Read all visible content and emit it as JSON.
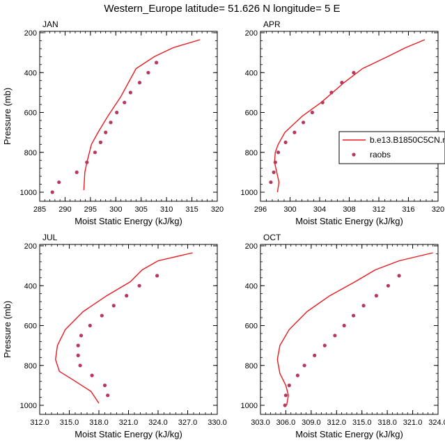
{
  "figure": {
    "title": "Western_Europe  latitude= 51.626 N longitude= 5 E"
  },
  "colors": {
    "model_line": "#e8191f",
    "raobs_marker": "#b5385d"
  },
  "legend": {
    "placement": "right-of-APR-panel",
    "model_label": "b.e13.B1850C5CN.n",
    "obs_label": "raobs"
  },
  "chart_data": [
    {
      "type": "line",
      "panel": "JAN",
      "title": "JAN",
      "xlabel": "Moist Static Energy (kJ/kg)",
      "ylabel": "Pressure (mb)",
      "xlim": [
        285,
        320
      ],
      "ylim": [
        1000,
        200
      ],
      "y_scale": "linear-reversed",
      "xticks": [
        285,
        290,
        295,
        300,
        305,
        310,
        315,
        320
      ],
      "xtick_labels": [
        "285",
        "290",
        "295",
        "300",
        "305",
        "310",
        "315",
        "320"
      ],
      "yticks": [
        200,
        400,
        600,
        800,
        1000
      ],
      "ytick_labels": [
        "200",
        "400",
        "600",
        "800",
        "1000"
      ],
      "grid": false,
      "series": [
        {
          "name": "b.e13.B1850C5CN.n",
          "style": "line",
          "x": [
            293.7,
            293.9,
            294.3,
            295.2,
            296.5,
            298.4,
            301.0,
            304.0,
            307.6,
            311.3,
            316.6
          ],
          "y": [
            990,
            900,
            850,
            760,
            700,
            620,
            520,
            380,
            320,
            275,
            235
          ]
        },
        {
          "name": "raobs",
          "style": "marker",
          "x": [
            287.5,
            288.8,
            292.3,
            294.3,
            295.9,
            297.0,
            298.0,
            299.0,
            300.2,
            301.7,
            302.9,
            304.7,
            306.4,
            308.0
          ],
          "y": [
            1000,
            950,
            900,
            850,
            800,
            750,
            700,
            650,
            600,
            550,
            500,
            450,
            400,
            350
          ]
        }
      ]
    },
    {
      "type": "line",
      "panel": "APR",
      "title": "APR",
      "xlabel": "Moist Static Energy (kJ/kg)",
      "ylabel": "",
      "xlim": [
        296,
        320
      ],
      "ylim": [
        1000,
        200
      ],
      "y_scale": "linear-reversed",
      "xticks": [
        296,
        300,
        304,
        308,
        312,
        316,
        320
      ],
      "xtick_labels": [
        "296",
        "300",
        "304",
        "308",
        "312",
        "316",
        "320"
      ],
      "yticks": [
        200,
        400,
        600,
        800,
        1000
      ],
      "ytick_labels": [
        "200",
        "400",
        "600",
        "800",
        "1000"
      ],
      "grid": false,
      "series": [
        {
          "name": "b.e13.B1850C5CN.n",
          "style": "line",
          "x": [
            298.3,
            298.5,
            298.2,
            297.9,
            298.0,
            298.4,
            299.3,
            301.6,
            304.2,
            307.3,
            309.8,
            313.2,
            315.6,
            318.2
          ],
          "y": [
            1000,
            950,
            900,
            850,
            800,
            760,
            700,
            620,
            550,
            450,
            380,
            320,
            275,
            235
          ]
        },
        {
          "name": "raobs",
          "style": "marker",
          "x": [
            297.4,
            297.8,
            298.0,
            298.4,
            299.4,
            300.6,
            301.8,
            303.0,
            304.4,
            305.6,
            307.0,
            308.6
          ],
          "y": [
            950,
            900,
            850,
            800,
            750,
            700,
            650,
            600,
            550,
            500,
            450,
            400
          ]
        }
      ]
    },
    {
      "type": "line",
      "panel": "JUL",
      "title": "JUL",
      "xlabel": "Moist Static Energy (kJ/kg)",
      "ylabel": "Pressure (mb)",
      "xlim": [
        312,
        330
      ],
      "ylim": [
        1000,
        200
      ],
      "y_scale": "linear-reversed",
      "xticks": [
        312,
        315,
        318,
        321,
        324,
        327,
        330
      ],
      "xtick_labels": [
        "312.0",
        "315.0",
        "318.0",
        "321.0",
        "324.0",
        "327.0",
        "330.0"
      ],
      "yticks": [
        200,
        400,
        600,
        800,
        1000
      ],
      "ytick_labels": [
        "200",
        "400",
        "600",
        "800",
        "1000"
      ],
      "grid": false,
      "series": [
        {
          "name": "b.e13.B1850C5CN.n",
          "style": "line",
          "x": [
            318.0,
            317.2,
            315.3,
            314.0,
            313.6,
            313.8,
            314.6,
            316.4,
            318.8,
            321.2,
            322.4,
            324.0,
            327.5
          ],
          "y": [
            990,
            930,
            870,
            830,
            770,
            700,
            620,
            530,
            450,
            380,
            320,
            275,
            235
          ]
        },
        {
          "name": "raobs",
          "style": "marker",
          "x": [
            318.9,
            318.6,
            317.3,
            316.1,
            315.9,
            315.9,
            316.2,
            317.1,
            318.3,
            319.5,
            320.8,
            322.1,
            323.9
          ],
          "y": [
            950,
            900,
            850,
            800,
            750,
            700,
            650,
            600,
            550,
            500,
            450,
            400,
            350
          ]
        }
      ]
    },
    {
      "type": "line",
      "panel": "OCT",
      "title": "OCT",
      "xlabel": "Moist Static Energy (kJ/kg)",
      "ylabel": "",
      "xlim": [
        303,
        324
      ],
      "ylim": [
        1000,
        200
      ],
      "y_scale": "linear-reversed",
      "xticks": [
        303,
        306,
        309,
        312,
        315,
        318,
        321,
        324
      ],
      "xtick_labels": [
        "303.0",
        "306.0",
        "309.0",
        "312.0",
        "315.0",
        "318.0",
        "321.0",
        "324.0"
      ],
      "yticks": [
        200,
        400,
        600,
        800,
        1000
      ],
      "ytick_labels": [
        "200",
        "400",
        "600",
        "800",
        "1000"
      ],
      "grid": false,
      "series": [
        {
          "name": "b.e13.B1850C5CN.n",
          "style": "line",
          "x": [
            306.1,
            306.3,
            306.0,
            305.3,
            305.0,
            305.3,
            306.4,
            308.5,
            311.2,
            314.2,
            316.6,
            319.4,
            323.4
          ],
          "y": [
            1000,
            950,
            900,
            840,
            770,
            700,
            620,
            530,
            450,
            380,
            320,
            275,
            235
          ]
        },
        {
          "name": "raobs",
          "style": "marker",
          "x": [
            305.9,
            306.0,
            306.4,
            307.4,
            308.2,
            309.4,
            310.6,
            311.8,
            312.9,
            314.0,
            315.2,
            316.7,
            318.1,
            319.4
          ],
          "y": [
            1000,
            950,
            900,
            850,
            800,
            750,
            700,
            650,
            600,
            550,
            500,
            450,
            400,
            350
          ]
        }
      ]
    }
  ]
}
